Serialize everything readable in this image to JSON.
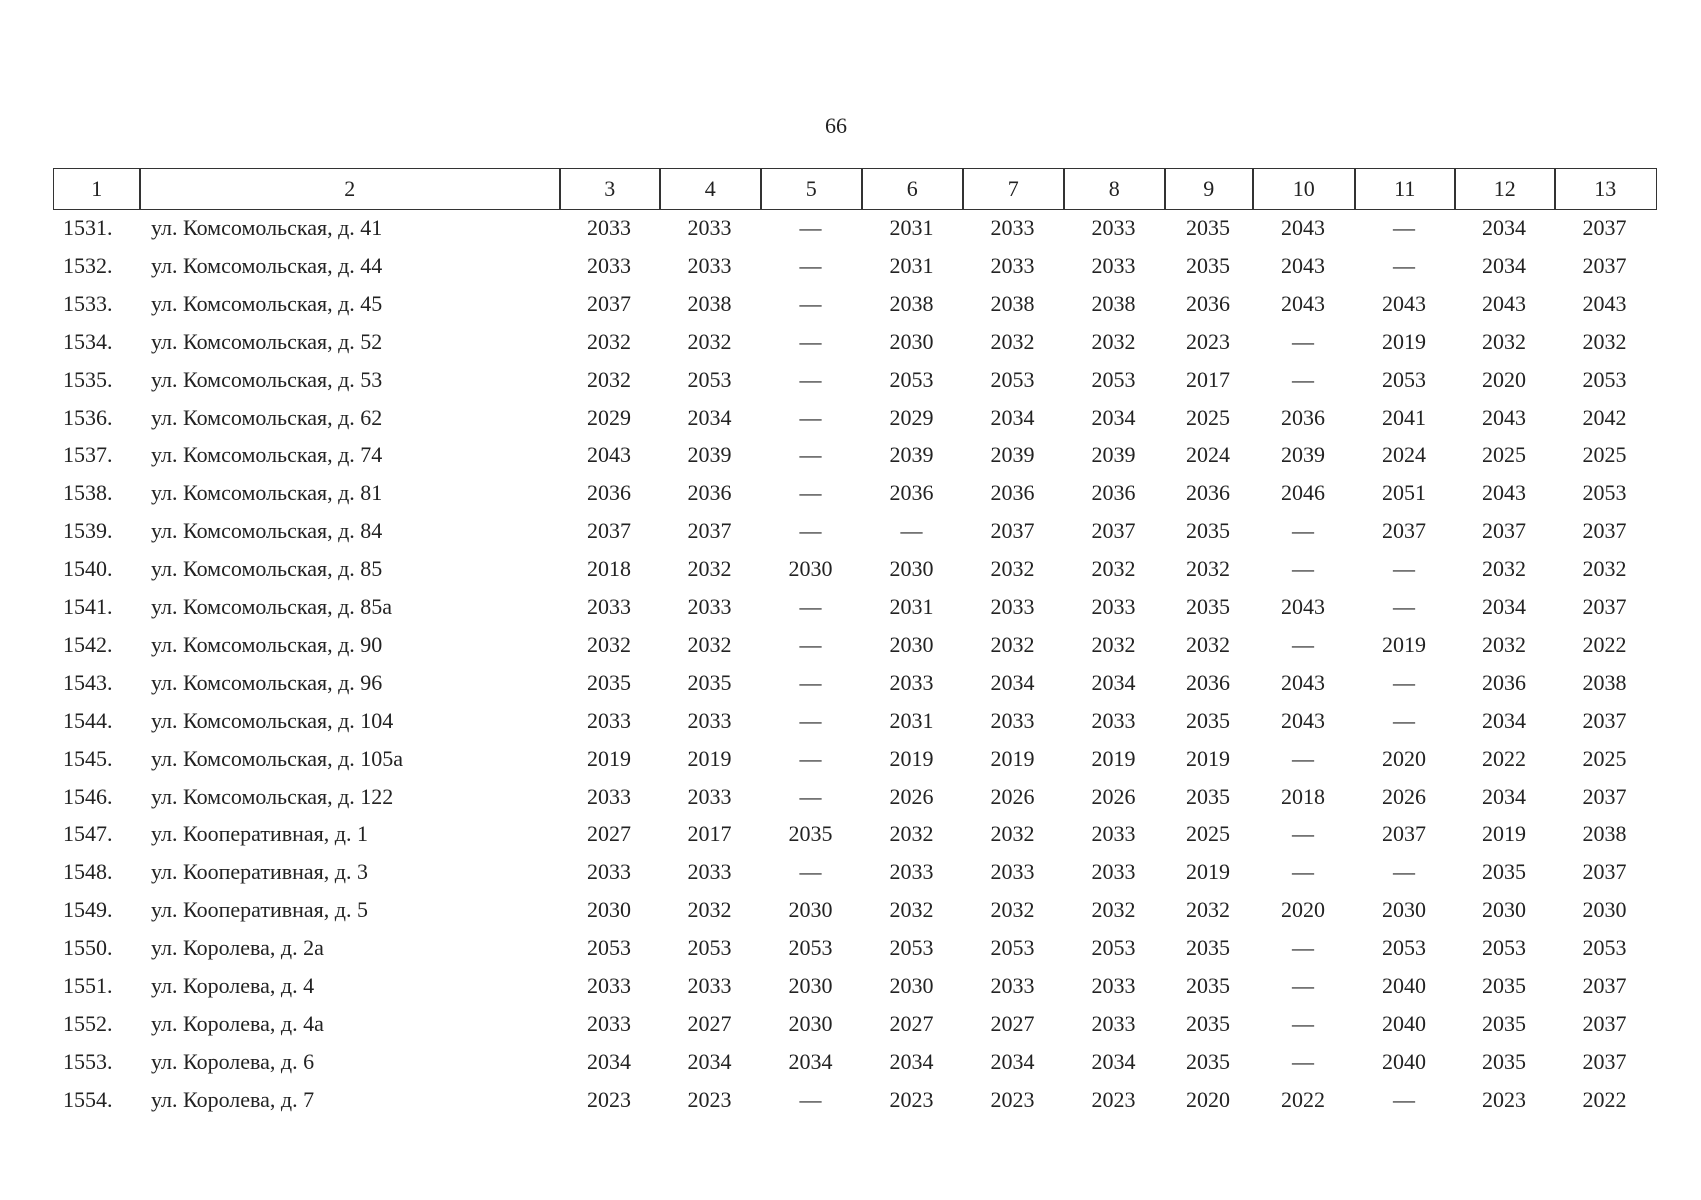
{
  "page_number": "66",
  "table": {
    "header": [
      "1",
      "2",
      "3",
      "4",
      "5",
      "6",
      "7",
      "8",
      "9",
      "10",
      "11",
      "12",
      "13"
    ],
    "rows": [
      [
        "1531.",
        "ул. Комсомольская, д. 41",
        "2033",
        "2033",
        "—",
        "2031",
        "2033",
        "2033",
        "2035",
        "2043",
        "—",
        "2034",
        "2037"
      ],
      [
        "1532.",
        "ул. Комсомольская, д. 44",
        "2033",
        "2033",
        "—",
        "2031",
        "2033",
        "2033",
        "2035",
        "2043",
        "—",
        "2034",
        "2037"
      ],
      [
        "1533.",
        "ул. Комсомольская, д. 45",
        "2037",
        "2038",
        "—",
        "2038",
        "2038",
        "2038",
        "2036",
        "2043",
        "2043",
        "2043",
        "2043"
      ],
      [
        "1534.",
        "ул. Комсомольская, д. 52",
        "2032",
        "2032",
        "—",
        "2030",
        "2032",
        "2032",
        "2023",
        "—",
        "2019",
        "2032",
        "2032"
      ],
      [
        "1535.",
        "ул. Комсомольская, д. 53",
        "2032",
        "2053",
        "—",
        "2053",
        "2053",
        "2053",
        "2017",
        "—",
        "2053",
        "2020",
        "2053"
      ],
      [
        "1536.",
        "ул. Комсомольская, д. 62",
        "2029",
        "2034",
        "—",
        "2029",
        "2034",
        "2034",
        "2025",
        "2036",
        "2041",
        "2043",
        "2042"
      ],
      [
        "1537.",
        "ул. Комсомольская, д. 74",
        "2043",
        "2039",
        "—",
        "2039",
        "2039",
        "2039",
        "2024",
        "2039",
        "2024",
        "2025",
        "2025"
      ],
      [
        "1538.",
        "ул. Комсомольская, д. 81",
        "2036",
        "2036",
        "—",
        "2036",
        "2036",
        "2036",
        "2036",
        "2046",
        "2051",
        "2043",
        "2053"
      ],
      [
        "1539.",
        "ул. Комсомольская, д. 84",
        "2037",
        "2037",
        "—",
        "—",
        "2037",
        "2037",
        "2035",
        "—",
        "2037",
        "2037",
        "2037"
      ],
      [
        "1540.",
        "ул. Комсомольская, д. 85",
        "2018",
        "2032",
        "2030",
        "2030",
        "2032",
        "2032",
        "2032",
        "—",
        "—",
        "2032",
        "2032"
      ],
      [
        "1541.",
        "ул. Комсомольская, д. 85а",
        "2033",
        "2033",
        "—",
        "2031",
        "2033",
        "2033",
        "2035",
        "2043",
        "—",
        "2034",
        "2037"
      ],
      [
        "1542.",
        "ул. Комсомольская, д. 90",
        "2032",
        "2032",
        "—",
        "2030",
        "2032",
        "2032",
        "2032",
        "—",
        "2019",
        "2032",
        "2022"
      ],
      [
        "1543.",
        "ул. Комсомольская, д. 96",
        "2035",
        "2035",
        "—",
        "2033",
        "2034",
        "2034",
        "2036",
        "2043",
        "—",
        "2036",
        "2038"
      ],
      [
        "1544.",
        "ул. Комсомольская, д. 104",
        "2033",
        "2033",
        "—",
        "2031",
        "2033",
        "2033",
        "2035",
        "2043",
        "—",
        "2034",
        "2037"
      ],
      [
        "1545.",
        "ул. Комсомольская, д. 105а",
        "2019",
        "2019",
        "—",
        "2019",
        "2019",
        "2019",
        "2019",
        "—",
        "2020",
        "2022",
        "2025"
      ],
      [
        "1546.",
        "ул. Комсомольская, д. 122",
        "2033",
        "2033",
        "—",
        "2026",
        "2026",
        "2026",
        "2035",
        "2018",
        "2026",
        "2034",
        "2037"
      ],
      [
        "1547.",
        "ул. Кооперативная, д. 1",
        "2027",
        "2017",
        "2035",
        "2032",
        "2032",
        "2033",
        "2025",
        "—",
        "2037",
        "2019",
        "2038"
      ],
      [
        "1548.",
        "ул. Кооперативная, д. 3",
        "2033",
        "2033",
        "—",
        "2033",
        "2033",
        "2033",
        "2019",
        "—",
        "—",
        "2035",
        "2037"
      ],
      [
        "1549.",
        "ул. Кооперативная, д. 5",
        "2030",
        "2032",
        "2030",
        "2032",
        "2032",
        "2032",
        "2032",
        "2020",
        "2030",
        "2030",
        "2030"
      ],
      [
        "1550.",
        "ул. Королева, д. 2а",
        "2053",
        "2053",
        "2053",
        "2053",
        "2053",
        "2053",
        "2035",
        "—",
        "2053",
        "2053",
        "2053"
      ],
      [
        "1551.",
        "ул. Королева, д. 4",
        "2033",
        "2033",
        "2030",
        "2030",
        "2033",
        "2033",
        "2035",
        "—",
        "2040",
        "2035",
        "2037"
      ],
      [
        "1552.",
        "ул. Королева, д. 4а",
        "2033",
        "2027",
        "2030",
        "2027",
        "2027",
        "2033",
        "2035",
        "—",
        "2040",
        "2035",
        "2037"
      ],
      [
        "1553.",
        "ул. Королева, д. 6",
        "2034",
        "2034",
        "2034",
        "2034",
        "2034",
        "2034",
        "2035",
        "—",
        "2040",
        "2035",
        "2037"
      ],
      [
        "1554.",
        "ул. Королева, д. 7",
        "2023",
        "2023",
        "—",
        "2023",
        "2023",
        "2023",
        "2020",
        "2022",
        "—",
        "2023",
        "2022"
      ]
    ]
  }
}
